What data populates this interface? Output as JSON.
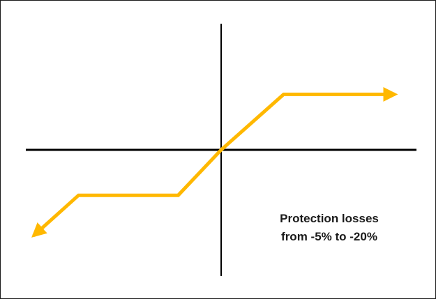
{
  "chart_data": {
    "type": "line",
    "title": "",
    "xlabel": "",
    "ylabel": "",
    "xlim": [
      -10,
      10
    ],
    "ylim": [
      -5,
      5
    ],
    "grid": false,
    "legend": "none",
    "series": [
      {
        "color": "#FFB800",
        "x": [
          -9.6,
          -7.3,
          -2.2,
          0,
          3.2,
          8.9
        ],
        "y": [
          -3.4,
          -1.8,
          -1.8,
          0,
          2.2,
          2.2
        ],
        "start_arrow": true,
        "end_arrow": true
      }
    ],
    "axis_color": "#000000",
    "annotations": [
      {
        "lines": [
          "Protection losses",
          "from -5% to -20%"
        ]
      }
    ]
  }
}
